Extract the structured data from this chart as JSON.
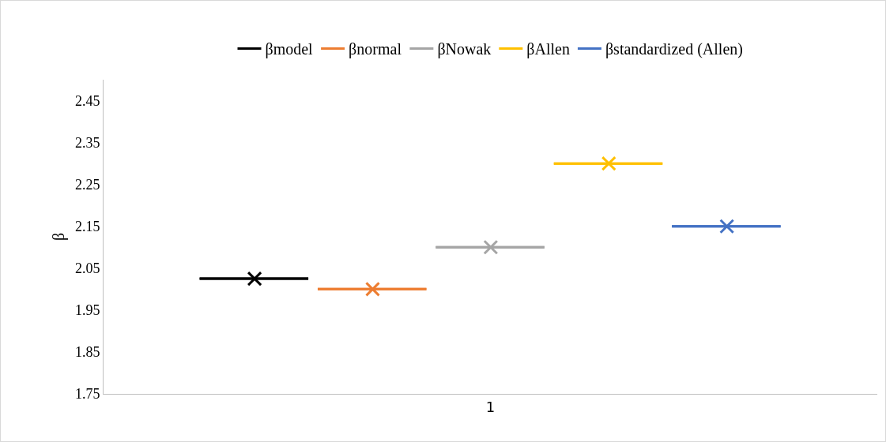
{
  "chart_data": {
    "type": "box",
    "ylabel": "β",
    "categories": [
      "1"
    ],
    "marker": "cross",
    "legend": "top",
    "grid": false,
    "series": [
      {
        "name": "βmodel",
        "color": "#000000",
        "boxes": [
          {
            "low": 2.025,
            "q1": 2.025,
            "median": 2.025,
            "q3": 2.025,
            "high": 2.025,
            "mean": 2.025
          }
        ]
      },
      {
        "name": "βnormal",
        "color": "#ed7d31",
        "boxes": [
          {
            "low": 2.0,
            "q1": 2.0,
            "median": 2.0,
            "q3": 2.0,
            "high": 2.0,
            "mean": 2.0
          }
        ]
      },
      {
        "name": "βNowak",
        "color": "#a5a5a5",
        "boxes": [
          {
            "low": 2.1,
            "q1": 2.1,
            "median": 2.1,
            "q3": 2.1,
            "high": 2.1,
            "mean": 2.1
          }
        ]
      },
      {
        "name": "βAllen",
        "color": "#ffc000",
        "boxes": [
          {
            "low": 2.3,
            "q1": 2.3,
            "median": 2.3,
            "q3": 2.3,
            "high": 2.3,
            "mean": 2.3
          }
        ]
      },
      {
        "name": "βstandardized (Allen)",
        "color": "#4472c4",
        "boxes": [
          {
            "low": 2.15,
            "q1": 2.15,
            "median": 2.15,
            "q3": 2.15,
            "high": 2.15,
            "mean": 2.15
          }
        ]
      }
    ],
    "ylim": [
      1.75,
      2.5
    ],
    "yticks": [
      1.75,
      1.85,
      1.95,
      2.05,
      2.15,
      2.25,
      2.35,
      2.45
    ]
  }
}
